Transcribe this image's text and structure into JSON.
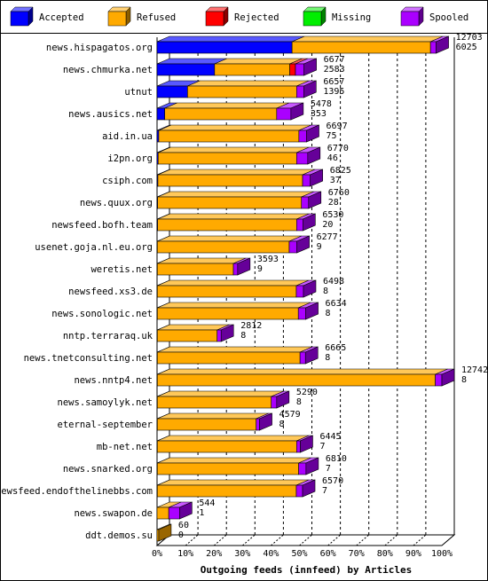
{
  "chart_data": {
    "type": "bar",
    "stacked": true,
    "orientation": "horizontal",
    "title": "",
    "xlabel": "Outgoing feeds (innfeed) by Articles",
    "ylabel": "",
    "xlim": [
      0,
      100
    ],
    "x_unit": "%",
    "x_ticks": [
      "0%",
      "10%",
      "20%",
      "30%",
      "40%",
      "50%",
      "60%",
      "70%",
      "80%",
      "90%",
      "100%"
    ],
    "grid": true,
    "legend_position": "top",
    "series": [
      {
        "name": "Accepted",
        "color": "#0000ff"
      },
      {
        "name": "Refused",
        "color": "#ffaa00"
      },
      {
        "name": "Rejected",
        "color": "#ff0000"
      },
      {
        "name": "Missing",
        "color": "#00ee00"
      },
      {
        "name": "Spooled",
        "color": "#aa00ff"
      }
    ],
    "categories": [
      "news.hispagatos.org",
      "news.chmurka.net",
      "utnut",
      "news.ausics.net",
      "aid.in.ua",
      "i2pn.org",
      "csiph.com",
      "news.quux.org",
      "newsfeed.bofh.team",
      "usenet.goja.nl.eu.org",
      "weretis.net",
      "newsfeed.xs3.de",
      "news.sonologic.net",
      "nntp.terraraq.uk",
      "news.tnetconsulting.net",
      "news.nntp4.net",
      "news.samoylyk.net",
      "eternal-september",
      "mb-net.net",
      "news.snarked.org",
      "newsfeed.endofthelinebbs.com",
      "news.swapon.de",
      "ddt.demos.su"
    ],
    "offered": [
      12703,
      6677,
      6657,
      5478,
      6697,
      6770,
      6825,
      6760,
      6530,
      6277,
      3593,
      6498,
      6634,
      2812,
      6665,
      12742,
      5290,
      4579,
      6445,
      6810,
      6570,
      544,
      60
    ],
    "accepted": [
      6025,
      2583,
      1395,
      353,
      75,
      46,
      37,
      28,
      20,
      9,
      9,
      8,
      8,
      8,
      8,
      8,
      8,
      8,
      7,
      7,
      7,
      1,
      0
    ],
    "segments_percent": [
      [
        47.4,
        48.6,
        0,
        0,
        2.0
      ],
      [
        20.2,
        26.4,
        2.0,
        0,
        3.0
      ],
      [
        10.7,
        38.3,
        0,
        0,
        2.5
      ],
      [
        2.7,
        39.3,
        0,
        0,
        5.0
      ],
      [
        0.6,
        49.2,
        0,
        0,
        2.7
      ],
      [
        0.4,
        48.6,
        0,
        0,
        3.9
      ],
      [
        0.3,
        50.8,
        0,
        0,
        2.7
      ],
      [
        0.2,
        50.5,
        0,
        0,
        2.5
      ],
      [
        0.2,
        48.8,
        0,
        0,
        2.2
      ],
      [
        0.1,
        46.3,
        0,
        0,
        2.7
      ],
      [
        0.1,
        26.7,
        0,
        0,
        1.5
      ],
      [
        0.1,
        48.8,
        0,
        0,
        2.5
      ],
      [
        0.1,
        49.5,
        0,
        0,
        2.6
      ],
      [
        0.1,
        21.0,
        0,
        0,
        1.4
      ],
      [
        0.1,
        50.1,
        0,
        0,
        1.9
      ],
      [
        0.1,
        97.6,
        0,
        0,
        2.3
      ],
      [
        0.1,
        40.0,
        0,
        0,
        1.9
      ],
      [
        0.1,
        34.7,
        0,
        0,
        1.2
      ],
      [
        0.1,
        48.9,
        0,
        0,
        1.3
      ],
      [
        0.1,
        49.6,
        0,
        0,
        2.6
      ],
      [
        0.1,
        48.8,
        0,
        0,
        2.2
      ],
      [
        0.0,
        4.1,
        0,
        0,
        3.8
      ],
      [
        0.0,
        0.6,
        0,
        0,
        0
      ]
    ]
  }
}
